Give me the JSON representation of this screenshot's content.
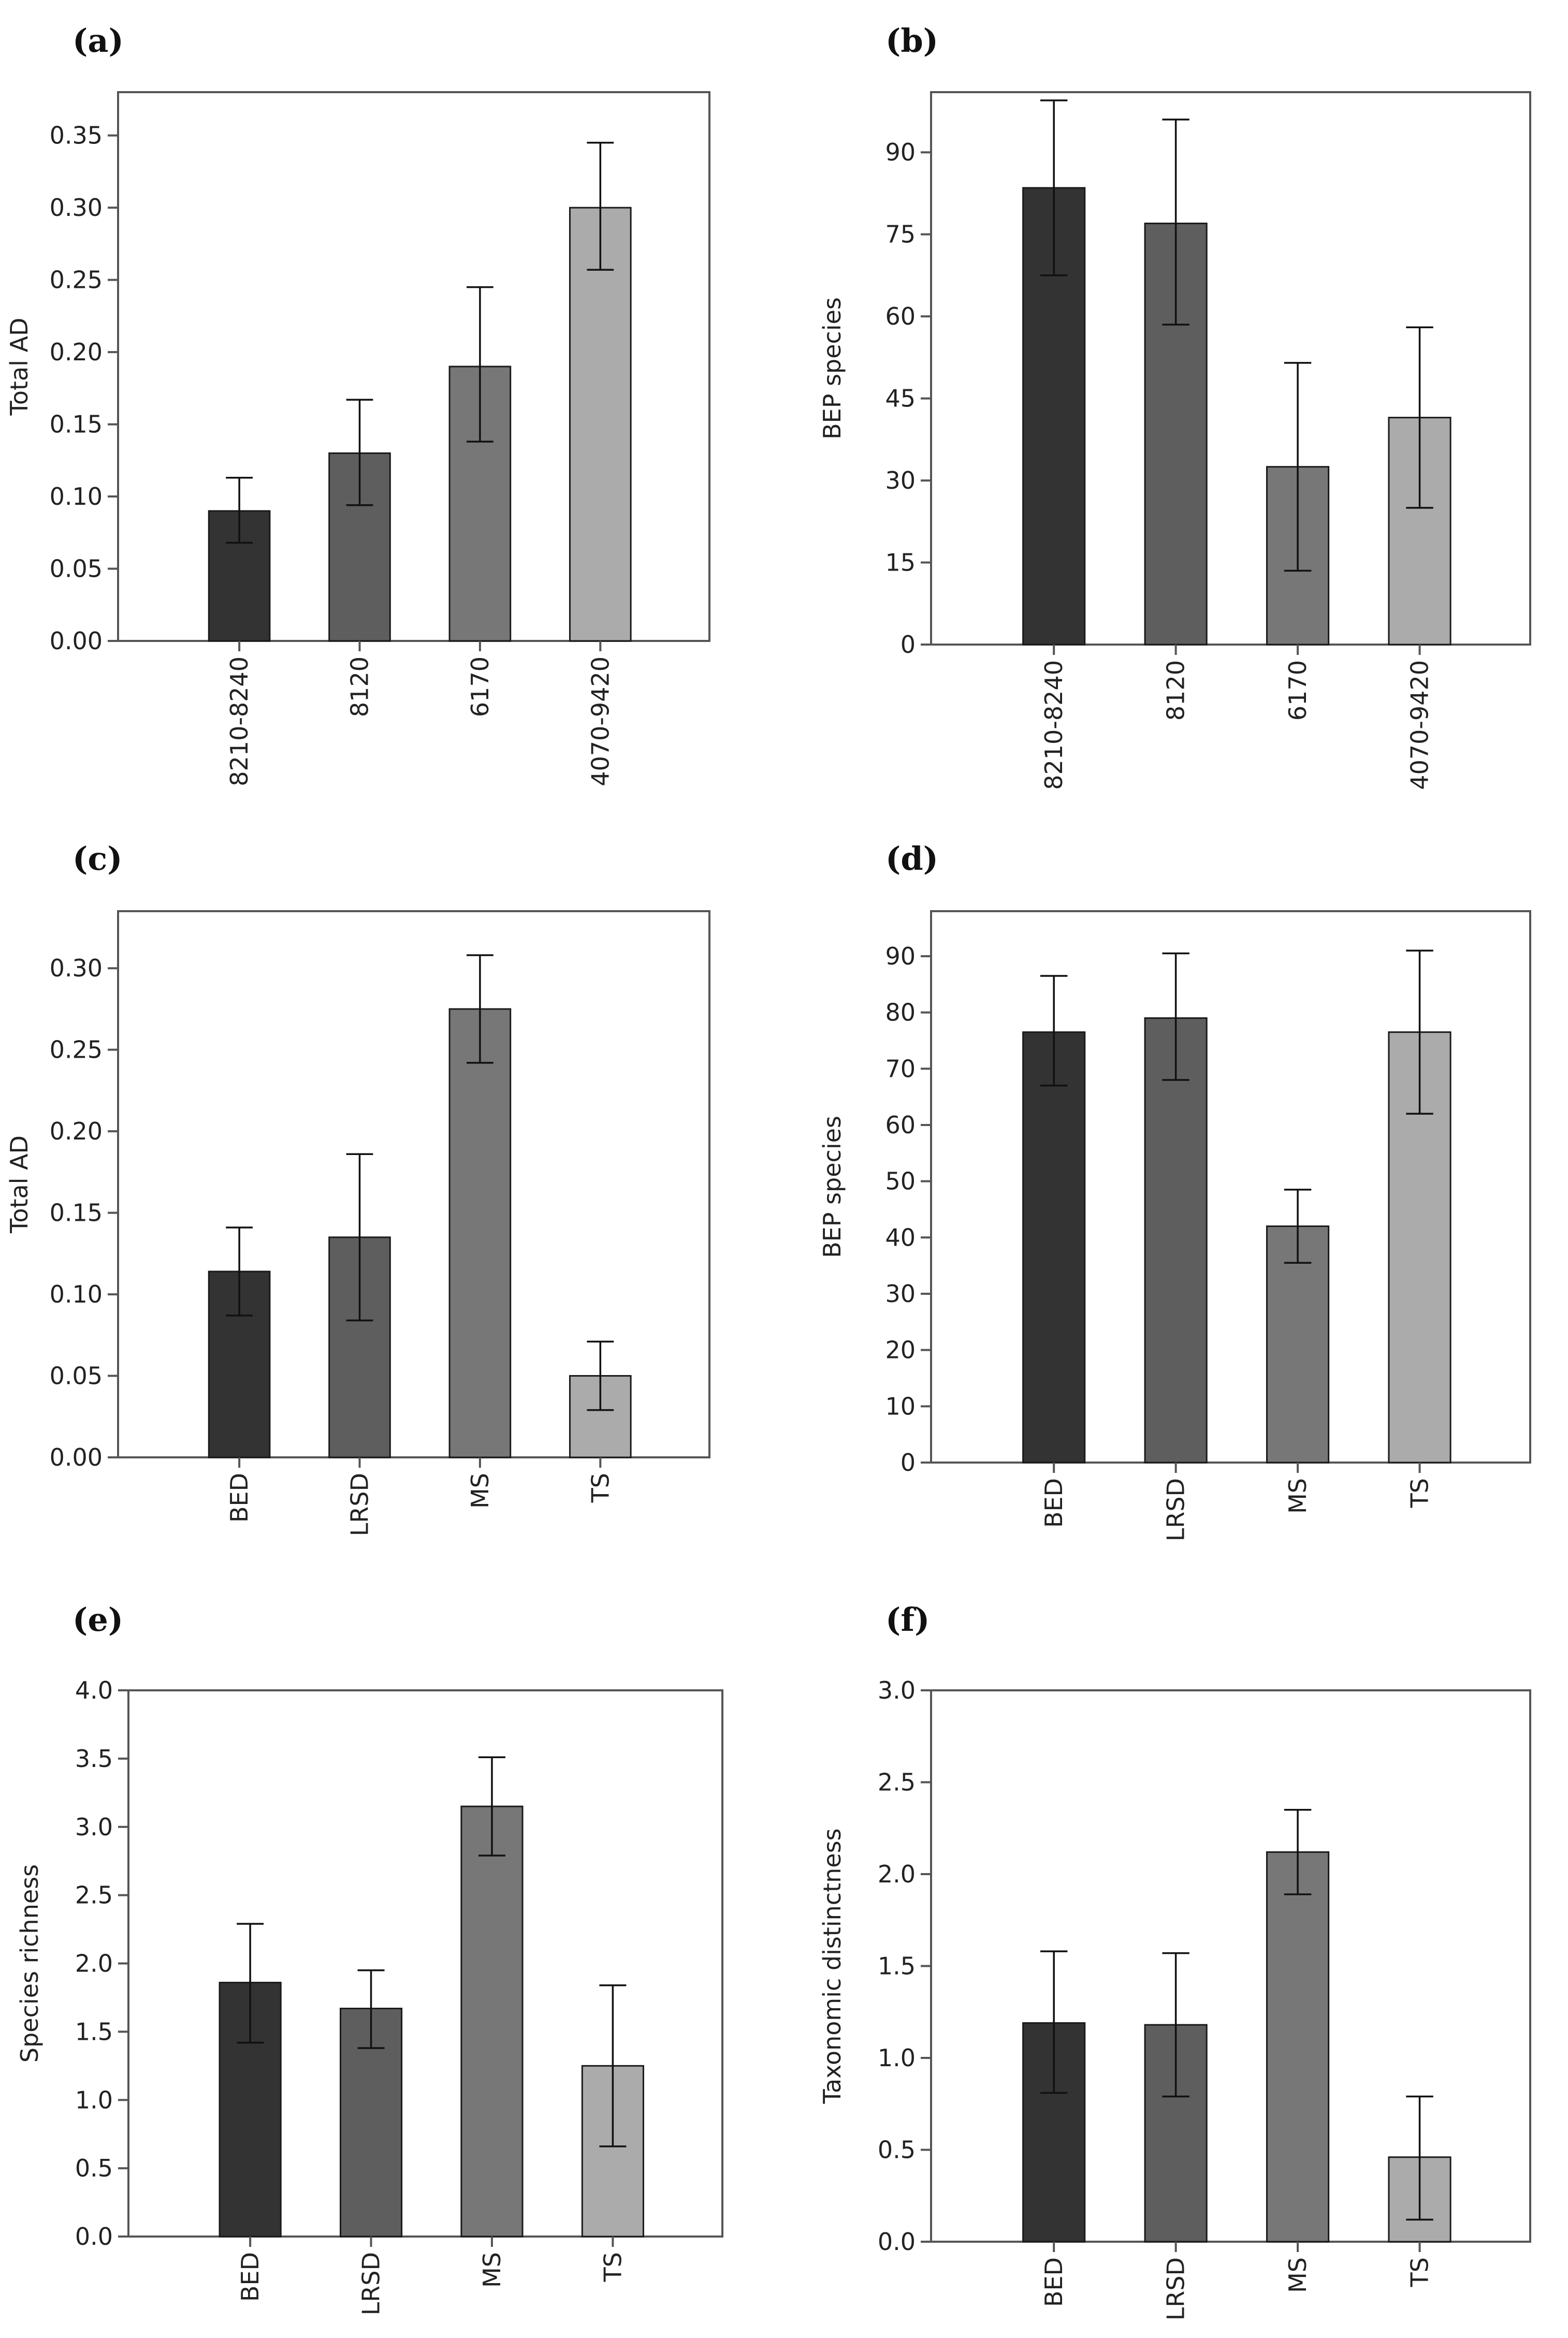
{
  "figure": {
    "background": "#ffffff",
    "axis_color": "#555555",
    "text_color": "#222222"
  },
  "chart_data": [
    {
      "type": "bar",
      "panel_label": "(a)",
      "categories": [
        "8210-8240",
        "8120",
        "6170",
        "4070-9420"
      ],
      "values": [
        0.09,
        0.13,
        0.19,
        0.3
      ],
      "error_low": [
        0.068,
        0.094,
        0.138,
        0.257
      ],
      "error_high": [
        0.113,
        0.167,
        0.245,
        0.345
      ],
      "colors": [
        "#333333",
        "#5e5e5e",
        "#777777",
        "#ababab"
      ],
      "ylabel": "Total AD",
      "ylim": [
        0,
        0.38
      ],
      "yticks": [
        "0.00",
        "0.05",
        "0.10",
        "0.15",
        "0.20",
        "0.25",
        "0.30",
        "0.35"
      ],
      "ytick_values": [
        0,
        0.05,
        0.1,
        0.15,
        0.2,
        0.25,
        0.3,
        0.35
      ]
    },
    {
      "type": "bar",
      "panel_label": "(b)",
      "categories": [
        "8210-8240",
        "8120",
        "6170",
        "4070-9420"
      ],
      "values": [
        83.5,
        77,
        32.5,
        41.5
      ],
      "error_low": [
        67.5,
        58.5,
        13.5,
        25
      ],
      "error_high": [
        99.5,
        96,
        51.5,
        58
      ],
      "colors": [
        "#333333",
        "#5e5e5e",
        "#777777",
        "#ababab"
      ],
      "ylabel": "BEP species",
      "ylim": [
        0,
        101
      ],
      "yticks": [
        "0",
        "15",
        "30",
        "45",
        "60",
        "75",
        "90"
      ],
      "ytick_values": [
        0,
        15,
        30,
        45,
        60,
        75,
        90
      ]
    },
    {
      "type": "bar",
      "panel_label": "(c)",
      "categories": [
        "BED",
        "LRSD",
        "MS",
        "TS"
      ],
      "values": [
        0.114,
        0.135,
        0.275,
        0.05
      ],
      "error_low": [
        0.087,
        0.084,
        0.242,
        0.029
      ],
      "error_high": [
        0.141,
        0.186,
        0.308,
        0.071
      ],
      "colors": [
        "#333333",
        "#5e5e5e",
        "#777777",
        "#ababab"
      ],
      "ylabel": "Total AD",
      "ylim": [
        0,
        0.335
      ],
      "yticks": [
        "0.00",
        "0.05",
        "0.10",
        "0.15",
        "0.20",
        "0.25",
        "0.30"
      ],
      "ytick_values": [
        0,
        0.05,
        0.1,
        0.15,
        0.2,
        0.25,
        0.3
      ]
    },
    {
      "type": "bar",
      "panel_label": "(d)",
      "categories": [
        "BED",
        "LRSD",
        "MS",
        "TS"
      ],
      "values": [
        76.5,
        79,
        42,
        76.5
      ],
      "error_low": [
        67,
        68,
        35.5,
        62
      ],
      "error_high": [
        86.5,
        90.5,
        48.5,
        91
      ],
      "colors": [
        "#333333",
        "#5e5e5e",
        "#777777",
        "#ababab"
      ],
      "ylabel": "BEP species",
      "ylim": [
        0,
        98
      ],
      "yticks": [
        "0",
        "10",
        "20",
        "30",
        "40",
        "50",
        "60",
        "70",
        "80",
        "90"
      ],
      "ytick_values": [
        0,
        10,
        20,
        30,
        40,
        50,
        60,
        70,
        80,
        90
      ]
    },
    {
      "type": "bar",
      "panel_label": "(e)",
      "categories": [
        "BED",
        "LRSD",
        "MS",
        "TS"
      ],
      "values": [
        1.86,
        1.67,
        3.15,
        1.25
      ],
      "error_low": [
        1.42,
        1.38,
        2.79,
        0.66
      ],
      "error_high": [
        2.29,
        1.95,
        3.51,
        1.84
      ],
      "colors": [
        "#333333",
        "#5e5e5e",
        "#777777",
        "#ababab"
      ],
      "ylabel": "Species richness",
      "ylim": [
        0,
        4.0
      ],
      "yticks": [
        "0.0",
        "0.5",
        "1.0",
        "1.5",
        "2.0",
        "2.5",
        "3.0",
        "3.5",
        "4.0"
      ],
      "ytick_values": [
        0,
        0.5,
        1.0,
        1.5,
        2.0,
        2.5,
        3.0,
        3.5,
        4.0
      ]
    },
    {
      "type": "bar",
      "panel_label": "(f)",
      "categories": [
        "BED",
        "LRSD",
        "MS",
        "TS"
      ],
      "values": [
        1.19,
        1.18,
        2.12,
        0.46
      ],
      "error_low": [
        0.81,
        0.79,
        1.89,
        0.12
      ],
      "error_high": [
        1.58,
        1.57,
        2.35,
        0.79
      ],
      "colors": [
        "#333333",
        "#5e5e5e",
        "#777777",
        "#ababab"
      ],
      "ylabel": "Taxonomic distinctness",
      "ylim": [
        0,
        3.0
      ],
      "yticks": [
        "0.0",
        "0.5",
        "1.0",
        "1.5",
        "2.0",
        "2.5",
        "3.0"
      ],
      "ytick_values": [
        0,
        0.5,
        1.0,
        1.5,
        2.0,
        2.5,
        3.0
      ]
    }
  ]
}
